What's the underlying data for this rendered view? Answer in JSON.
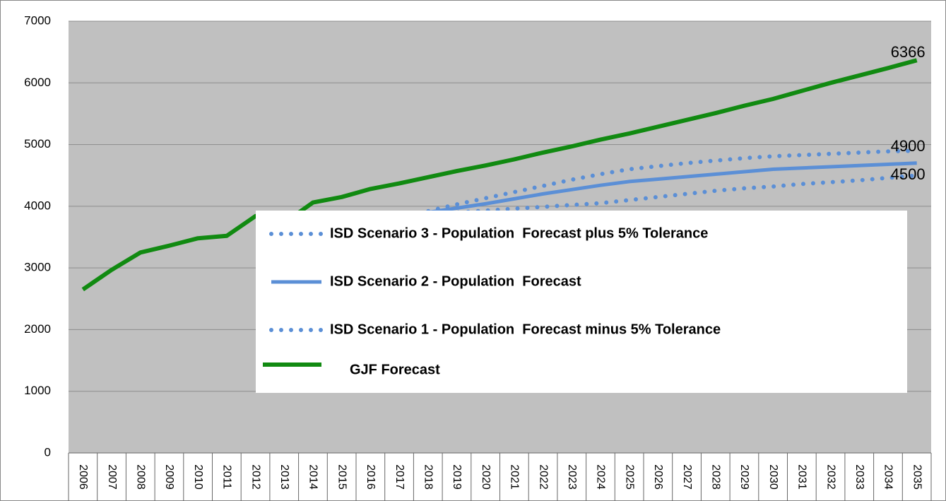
{
  "chart_data": {
    "type": "line",
    "categories": [
      "2006",
      "2007",
      "2008",
      "2009",
      "2010",
      "2011",
      "2012",
      "2013",
      "2014",
      "2015",
      "2016",
      "2017",
      "2018",
      "2019",
      "2020",
      "2021",
      "2022",
      "2023",
      "2024",
      "2025",
      "2026",
      "2027",
      "2028",
      "2029",
      "2030",
      "2031",
      "2032",
      "2033",
      "2034",
      "2035"
    ],
    "series": [
      {
        "name": "ISD Scenario 3 - Population  Forecast plus 5% Tolerance",
        "color": "#5b8fd6",
        "style": "dotted",
        "values": [
          null,
          null,
          null,
          null,
          null,
          null,
          null,
          null,
          null,
          null,
          null,
          3830,
          3920,
          4030,
          4130,
          4230,
          4330,
          4430,
          4520,
          4600,
          4650,
          4700,
          4740,
          4780,
          4810,
          4830,
          4850,
          4870,
          4890,
          4900
        ]
      },
      {
        "name": "ISD Scenario 2 - Population  Forecast",
        "color": "#5b8fd6",
        "style": "solid",
        "values": [
          null,
          null,
          null,
          null,
          null,
          null,
          null,
          null,
          3780,
          3780,
          3780,
          3830,
          3900,
          3970,
          4040,
          4120,
          4200,
          4270,
          4340,
          4400,
          4440,
          4480,
          4520,
          4560,
          4600,
          4620,
          4640,
          4660,
          4680,
          4700
        ]
      },
      {
        "name": "ISD Scenario 1 - Population  Forecast minus 5% Tolerance",
        "color": "#5b8fd6",
        "style": "dotted",
        "values": [
          null,
          null,
          null,
          null,
          null,
          null,
          null,
          null,
          null,
          null,
          null,
          3820,
          3860,
          3900,
          3930,
          3960,
          3990,
          4020,
          4050,
          4100,
          4150,
          4200,
          4250,
          4290,
          4320,
          4360,
          4390,
          4420,
          4460,
          4500
        ]
      },
      {
        "name": "GJF Forecast",
        "color": "#118a11",
        "style": "solid",
        "values": [
          2650,
          2970,
          3250,
          3360,
          3480,
          3520,
          3840,
          3730,
          4060,
          4150,
          4280,
          4370,
          4470,
          4570,
          4660,
          4760,
          4870,
          4970,
          5080,
          5180,
          5290,
          5400,
          5510,
          5630,
          5740,
          5870,
          6000,
          6120,
          6240,
          6366
        ]
      }
    ],
    "ylim": [
      0,
      7000
    ],
    "yticks": [
      0,
      1000,
      2000,
      3000,
      4000,
      5000,
      6000,
      7000
    ],
    "grid": true
  }
}
